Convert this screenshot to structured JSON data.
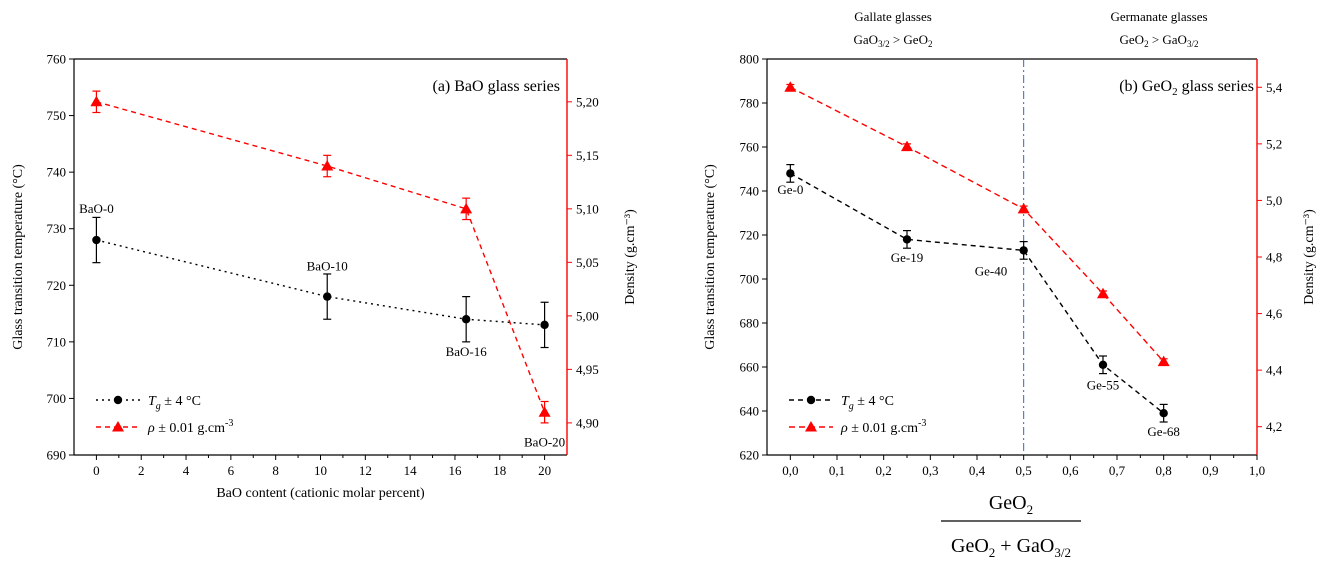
{
  "colors": {
    "tg": "#000000",
    "density": "#ff0000",
    "divider": "#3366cc",
    "region_text": "#1f3fbf"
  },
  "chart_data": [
    {
      "id": "a",
      "type": "line",
      "title": "(a) BaO glass series",
      "xlabel": "BaO content (cationic molar percent)",
      "ylabel_left": "Glass transition temperature (°C)",
      "ylabel_right": "Density (g.cm⁻³)",
      "xlim": [
        -1,
        21
      ],
      "ylim_left": [
        690,
        760
      ],
      "ylim_right": [
        4.87,
        5.24
      ],
      "x_ticks": [
        0,
        2,
        4,
        6,
        8,
        10,
        12,
        14,
        16,
        18,
        20
      ],
      "x_tick_labels": [
        "0",
        "2",
        "4",
        "6",
        "8",
        "10",
        "12",
        "14",
        "16",
        "18",
        "20"
      ],
      "y_left_ticks": [
        690,
        700,
        710,
        720,
        730,
        740,
        750,
        760
      ],
      "y_left_tick_labels": [
        "690",
        "700",
        "710",
        "720",
        "730",
        "740",
        "750",
        "760"
      ],
      "y_right_ticks": [
        4.9,
        4.95,
        5.0,
        5.05,
        5.1,
        5.15,
        5.2
      ],
      "y_right_tick_labels": [
        "4,90",
        "4,95",
        "5,00",
        "5,05",
        "5,10",
        "5,15",
        "5,20"
      ],
      "series": [
        {
          "name": "Tg ± 4 °C",
          "axis": "left",
          "color": "#000000",
          "marker": "circle",
          "dash": "2,4",
          "x": [
            0,
            10.3,
            16.5,
            20
          ],
          "y": [
            728,
            718,
            714,
            713
          ],
          "err": [
            4,
            4,
            4,
            4
          ]
        },
        {
          "name": "ρ ± 0.01 g.cm⁻³",
          "axis": "right",
          "color": "#ff0000",
          "marker": "triangle",
          "dash": "5,4",
          "x": [
            0,
            10.3,
            16.5,
            20
          ],
          "y": [
            5.2,
            5.14,
            5.1,
            4.91
          ],
          "err": [
            0.01,
            0.01,
            0.01,
            0.01
          ]
        }
      ],
      "point_labels": [
        {
          "text": "BaO-0",
          "x": 0,
          "y": 733.5,
          "axis": "left"
        },
        {
          "text": "BaO-10",
          "x": 10.3,
          "y": 723.3,
          "axis": "left"
        },
        {
          "text": "BaO-16",
          "x": 16.5,
          "y": 708.2,
          "axis": "left"
        },
        {
          "text": "BaO-20",
          "x": 20,
          "y": 692.2,
          "axis": "left"
        }
      ],
      "legend": {
        "position": "bottom-left",
        "entries": [
          {
            "symbol": "T",
            "sub": "g",
            "rest": " ± 4 °C"
          },
          {
            "symbol": "ρ",
            "sub": "",
            "rest": " ± 0.01 g.cm",
            "sup": "-3"
          }
        ]
      }
    },
    {
      "id": "b",
      "type": "line",
      "title_main": "(b) GeO",
      "title_sub": "2",
      "title_rest": " glass series",
      "xlabel_numerator": "GeO",
      "xlabel_numerator_sub": "2",
      "xlabel_den_a": "GeO",
      "xlabel_den_a_sub": "2",
      "xlabel_den_b": " + GaO",
      "xlabel_den_b_sub": "3/2",
      "ylabel_left": "Glass transition temperature (°C)",
      "ylabel_right": "Density (g.cm⁻³)",
      "xlim": [
        -0.05,
        1.0
      ],
      "ylim_left": [
        620,
        800
      ],
      "ylim_right": [
        4.1,
        5.5
      ],
      "x_ticks": [
        0,
        0.1,
        0.2,
        0.3,
        0.4,
        0.5,
        0.6,
        0.7,
        0.8,
        0.9,
        1.0
      ],
      "x_tick_labels": [
        "0,0",
        "0,1",
        "0,2",
        "0,3",
        "0,4",
        "0,5",
        "0,6",
        "0,7",
        "0,8",
        "0,9",
        "1,0"
      ],
      "y_left_ticks": [
        620,
        640,
        660,
        680,
        700,
        720,
        740,
        760,
        780,
        800
      ],
      "y_left_tick_labels": [
        "620",
        "640",
        "660",
        "680",
        "700",
        "720",
        "740",
        "760",
        "780",
        "800"
      ],
      "y_right_ticks": [
        4.2,
        4.4,
        4.6,
        4.8,
        5.0,
        5.2,
        5.4
      ],
      "y_right_tick_labels": [
        "4,2",
        "4,4",
        "4,6",
        "4,8",
        "5,0",
        "5,2",
        "5,4"
      ],
      "divider_x": 0.5,
      "regions": [
        {
          "line1": "Gallate glasses",
          "l2a": "GaO",
          "l2a_sub": "3/2",
          "l2b": " > GeO",
          "l2b_sub": "2",
          "x": 0.22
        },
        {
          "line1": "Germanate glasses",
          "l2a": "GeO",
          "l2a_sub": "2",
          "l2b": " > GaO",
          "l2b_sub": "3/2",
          "x": 0.79
        }
      ],
      "series": [
        {
          "name": "Tg ± 4 °C",
          "axis": "left",
          "color": "#000000",
          "marker": "circle",
          "dash": "5,4",
          "x": [
            0,
            0.25,
            0.5,
            0.67,
            0.8
          ],
          "y": [
            748,
            718,
            713,
            661,
            639
          ],
          "err": [
            4,
            4,
            4,
            4,
            4
          ]
        },
        {
          "name": "ρ ± 0.01 g.cm⁻³",
          "axis": "right",
          "color": "#ff0000",
          "marker": "triangle",
          "dash": "6,4",
          "x": [
            0,
            0.25,
            0.5,
            0.67,
            0.8
          ],
          "y": [
            5.4,
            5.19,
            4.97,
            4.67,
            4.43
          ],
          "err": [
            0.01,
            0.01,
            0.01,
            0.01,
            0.01
          ]
        }
      ],
      "point_labels": [
        {
          "text": "Ge-0",
          "x": 0.0,
          "y": 740.5,
          "axis": "left"
        },
        {
          "text": "Ge-19",
          "x": 0.25,
          "y": 709.5,
          "axis": "left"
        },
        {
          "text": "Ge-40",
          "x": 0.43,
          "y": 703.5,
          "axis": "left"
        },
        {
          "text": "Ge-55",
          "x": 0.67,
          "y": 651.5,
          "axis": "left"
        },
        {
          "text": "Ge-68",
          "x": 0.8,
          "y": 630.5,
          "axis": "left"
        }
      ],
      "legend": {
        "position": "bottom-left",
        "entries": [
          {
            "symbol": "T",
            "sub": "g",
            "rest": " ± 4 °C"
          },
          {
            "symbol": "ρ",
            "sub": "",
            "rest": " ± 0.01 g.cm",
            "sup": "-3"
          }
        ]
      }
    }
  ]
}
